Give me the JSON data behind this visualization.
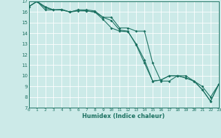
{
  "xlabel": "Humidex (Indice chaleur)",
  "bg_color": "#cceae8",
  "line_color": "#1a7060",
  "grid_color": "#ffffff",
  "xmin": 0,
  "xmax": 23,
  "ymin": 7,
  "ymax": 17,
  "x": [
    0,
    1,
    2,
    3,
    4,
    5,
    6,
    7,
    8,
    9,
    10,
    11,
    12,
    13,
    14,
    15,
    16,
    17,
    18,
    19,
    20,
    21,
    22,
    23
  ],
  "line1": [
    16.5,
    17.0,
    16.5,
    16.2,
    16.2,
    16.0,
    16.2,
    16.1,
    16.0,
    15.5,
    15.2,
    14.3,
    14.2,
    12.9,
    11.2,
    9.5,
    9.6,
    10.0,
    10.0,
    9.8,
    9.5,
    8.7,
    7.6,
    9.2
  ],
  "line2": [
    16.5,
    17.0,
    16.4,
    16.2,
    16.2,
    16.0,
    16.1,
    16.1,
    16.0,
    15.3,
    14.5,
    14.2,
    14.15,
    13.0,
    11.5,
    9.5,
    9.6,
    10.0,
    10.0,
    9.8,
    9.5,
    8.7,
    7.6,
    9.2
  ],
  "line3": [
    16.5,
    17.0,
    16.2,
    16.2,
    16.25,
    16.0,
    16.2,
    16.2,
    16.1,
    15.5,
    15.5,
    14.5,
    14.5,
    14.2,
    14.2,
    11.2,
    9.5,
    9.5,
    10.0,
    10.0,
    9.5,
    9.0,
    8.0,
    9.2
  ]
}
